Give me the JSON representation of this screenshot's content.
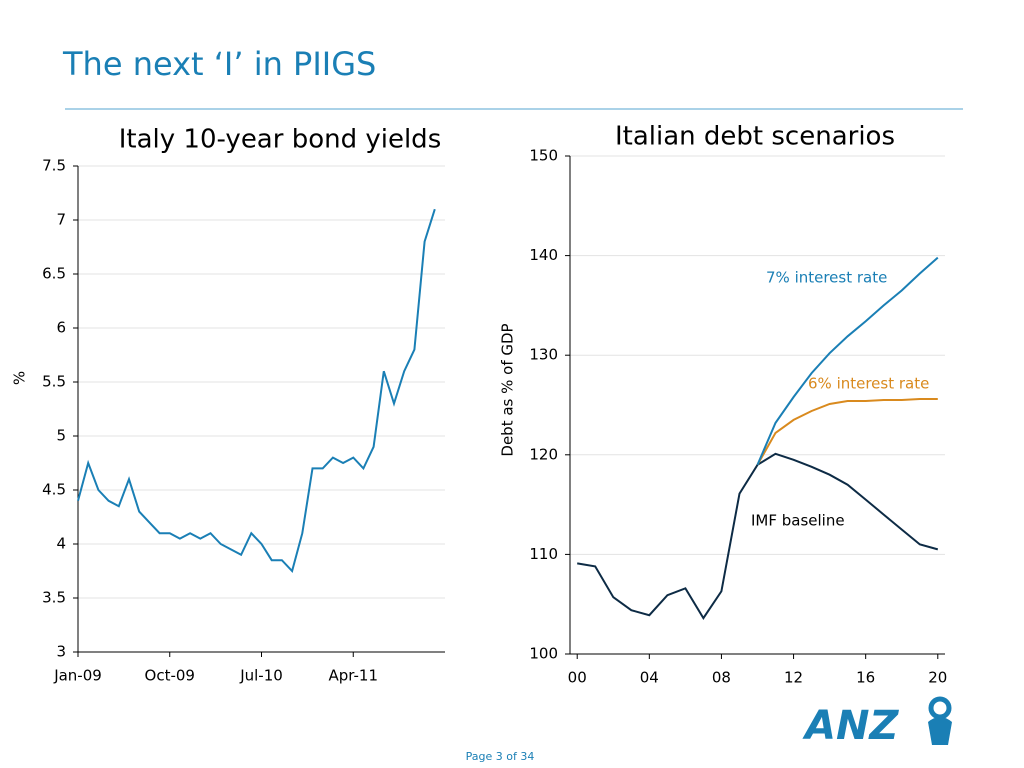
{
  "title": "The next ‘I’ in PIIGS",
  "footer": "Page 3 of 34",
  "logo": "ANZ",
  "chart_data": [
    {
      "type": "line",
      "title": "Italy 10-year bond yields",
      "y_label": "%",
      "categories": [
        "Jan-09",
        null,
        null,
        null,
        null,
        null,
        null,
        null,
        null,
        "Oct-09",
        null,
        null,
        null,
        null,
        null,
        null,
        null,
        null,
        "Jul-10",
        null,
        null,
        null,
        null,
        null,
        null,
        null,
        null,
        "Apr-11",
        null,
        null,
        null,
        null,
        null,
        null,
        null,
        null
      ],
      "values": [
        4.4,
        4.75,
        4.5,
        4.4,
        4.35,
        4.6,
        4.3,
        4.2,
        4.1,
        4.1,
        4.05,
        4.1,
        4.05,
        4.1,
        4.0,
        3.95,
        3.9,
        4.1,
        4.0,
        3.85,
        3.85,
        3.75,
        4.1,
        4.7,
        4.7,
        4.8,
        4.75,
        4.8,
        4.7,
        4.9,
        5.6,
        5.3,
        5.6,
        5.8,
        6.8,
        7.1
      ],
      "color": "#1a7fb5",
      "ylim": [
        3,
        7.5
      ],
      "yticks": [
        3,
        3.5,
        4,
        4.5,
        5,
        5.5,
        6,
        6.5,
        7,
        7.5
      ],
      "grid": true
    },
    {
      "type": "line",
      "title": "Italian debt scenarios",
      "y_label": "Debt as % of GDP",
      "x": [
        2000,
        2001,
        2002,
        2003,
        2004,
        2005,
        2006,
        2007,
        2008,
        2009,
        2010,
        2011,
        2012,
        2013,
        2014,
        2015,
        2016,
        2017,
        2018,
        2019,
        2020
      ],
      "series": [
        {
          "name": "IMF baseline",
          "color": "#0d2b45",
          "values": [
            109.1,
            108.8,
            105.7,
            104.4,
            103.9,
            105.9,
            106.6,
            103.6,
            106.3,
            116.1,
            119.0,
            120.1,
            119.5,
            118.8,
            118.0,
            117.0,
            115.5,
            114.0,
            112.5,
            111.0,
            110.5
          ]
        },
        {
          "name": "6% interest rate",
          "color": "#d98a1e",
          "values": [
            null,
            null,
            null,
            null,
            null,
            null,
            null,
            null,
            null,
            null,
            119.0,
            122.2,
            123.5,
            124.4,
            125.1,
            125.4,
            125.4,
            125.5,
            125.5,
            125.6,
            125.6
          ]
        },
        {
          "name": "7% interest rate",
          "color": "#1a7fb5",
          "values": [
            null,
            null,
            null,
            null,
            null,
            null,
            null,
            null,
            null,
            null,
            119.0,
            123.2,
            125.8,
            128.2,
            130.2,
            131.9,
            133.4,
            135.0,
            136.5,
            138.2,
            139.8
          ]
        }
      ],
      "xlim": [
        1999.6,
        2020.4
      ],
      "xticks": [
        {
          "value": 2000,
          "label": "00"
        },
        {
          "value": 2004,
          "label": "04"
        },
        {
          "value": 2008,
          "label": "08"
        },
        {
          "value": 2012,
          "label": "12"
        },
        {
          "value": 2016,
          "label": "16"
        },
        {
          "value": 2020,
          "label": "20"
        }
      ],
      "ylim": [
        100,
        150
      ],
      "yticks": [
        100,
        110,
        120,
        130,
        140,
        150
      ],
      "grid": true
    }
  ]
}
